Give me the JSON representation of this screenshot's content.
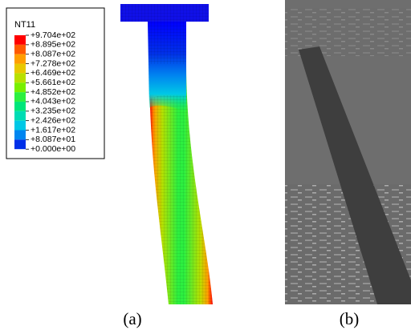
{
  "legend": {
    "title": "NT11",
    "labels": [
      "+9.704e+02",
      "+8.895e+02",
      "+8.087e+02",
      "+7.278e+02",
      "+6.469e+02",
      "+5.661e+02",
      "+4.852e+02",
      "+4.043e+02",
      "+3.235e+02",
      "+2.426e+02",
      "+1.617e+02",
      "+8.087e+01",
      "+0.000e+00"
    ],
    "colors": [
      "#ff0000",
      "#ff5a00",
      "#ff9e00",
      "#e8c800",
      "#b8e000",
      "#78ef00",
      "#2cf040",
      "#00e67a",
      "#00dcb4",
      "#00c8e6",
      "#0086f0",
      "#0030e8"
    ]
  },
  "captions": [
    "(a)",
    "(b)"
  ]
}
